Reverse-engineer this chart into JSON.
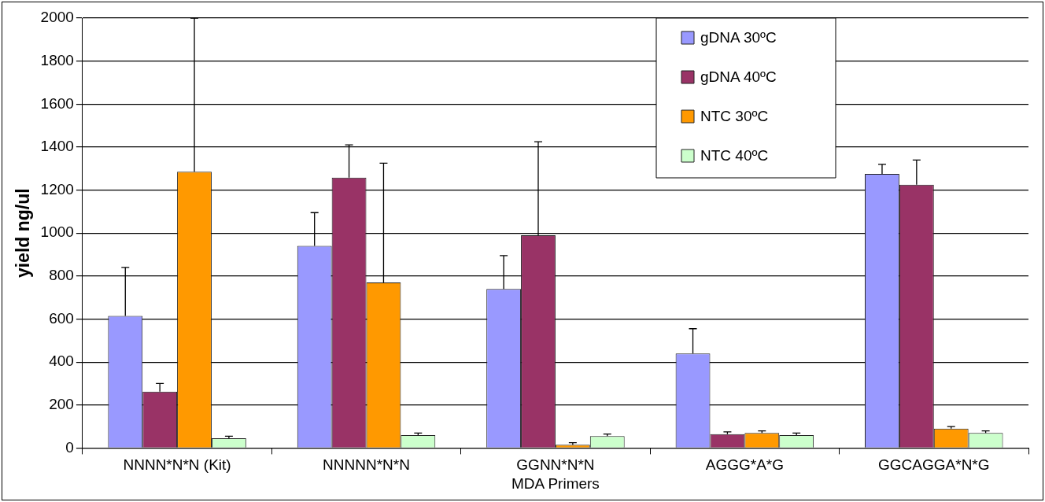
{
  "chart_data": {
    "type": "bar",
    "xlabel": "MDA Primers",
    "ylabel": "yield ng/ul",
    "categories": [
      "NNNN*N*N (Kit)",
      "NNNNN*N*N",
      "GGNN*N*N",
      "AGGG*A*G",
      "GGCAGGA*N*G"
    ],
    "series": [
      {
        "name": "gDNA 30ºC",
        "color": "#9999ff",
        "values": [
          615,
          940,
          740,
          440,
          1275
        ],
        "errors": [
          [
            615,
            840
          ],
          [
            940,
            1095
          ],
          [
            740,
            895
          ],
          [
            440,
            555
          ],
          [
            1275,
            1320
          ]
        ]
      },
      {
        "name": "gDNA 40ºC",
        "color": "#993366",
        "values": [
          262,
          1258,
          990,
          65,
          1225
        ],
        "errors": [
          [
            262,
            300
          ],
          [
            1258,
            1410
          ],
          [
            990,
            1425
          ],
          [
            65,
            75
          ],
          [
            1225,
            1340
          ]
        ]
      },
      {
        "name": "NTC 30ºC",
        "color": "#ff9900",
        "values": [
          1285,
          770,
          15,
          70,
          90
        ],
        "errors": [
          [
            1285,
            2000
          ],
          [
            770,
            1325
          ],
          [
            15,
            25
          ],
          [
            70,
            80
          ],
          [
            90,
            100
          ]
        ]
      },
      {
        "name": "NTC 40ºC",
        "color": "#ccffcc",
        "values": [
          45,
          60,
          55,
          60,
          70
        ],
        "errors": [
          [
            45,
            55
          ],
          [
            60,
            70
          ],
          [
            55,
            65
          ],
          [
            60,
            70
          ],
          [
            70,
            80
          ]
        ]
      }
    ],
    "ylim": [
      0,
      2000
    ],
    "yticks": [
      0,
      200,
      400,
      600,
      800,
      1000,
      1200,
      1400,
      1600,
      1800,
      2000
    ],
    "grid": "y",
    "legend": "top right"
  }
}
